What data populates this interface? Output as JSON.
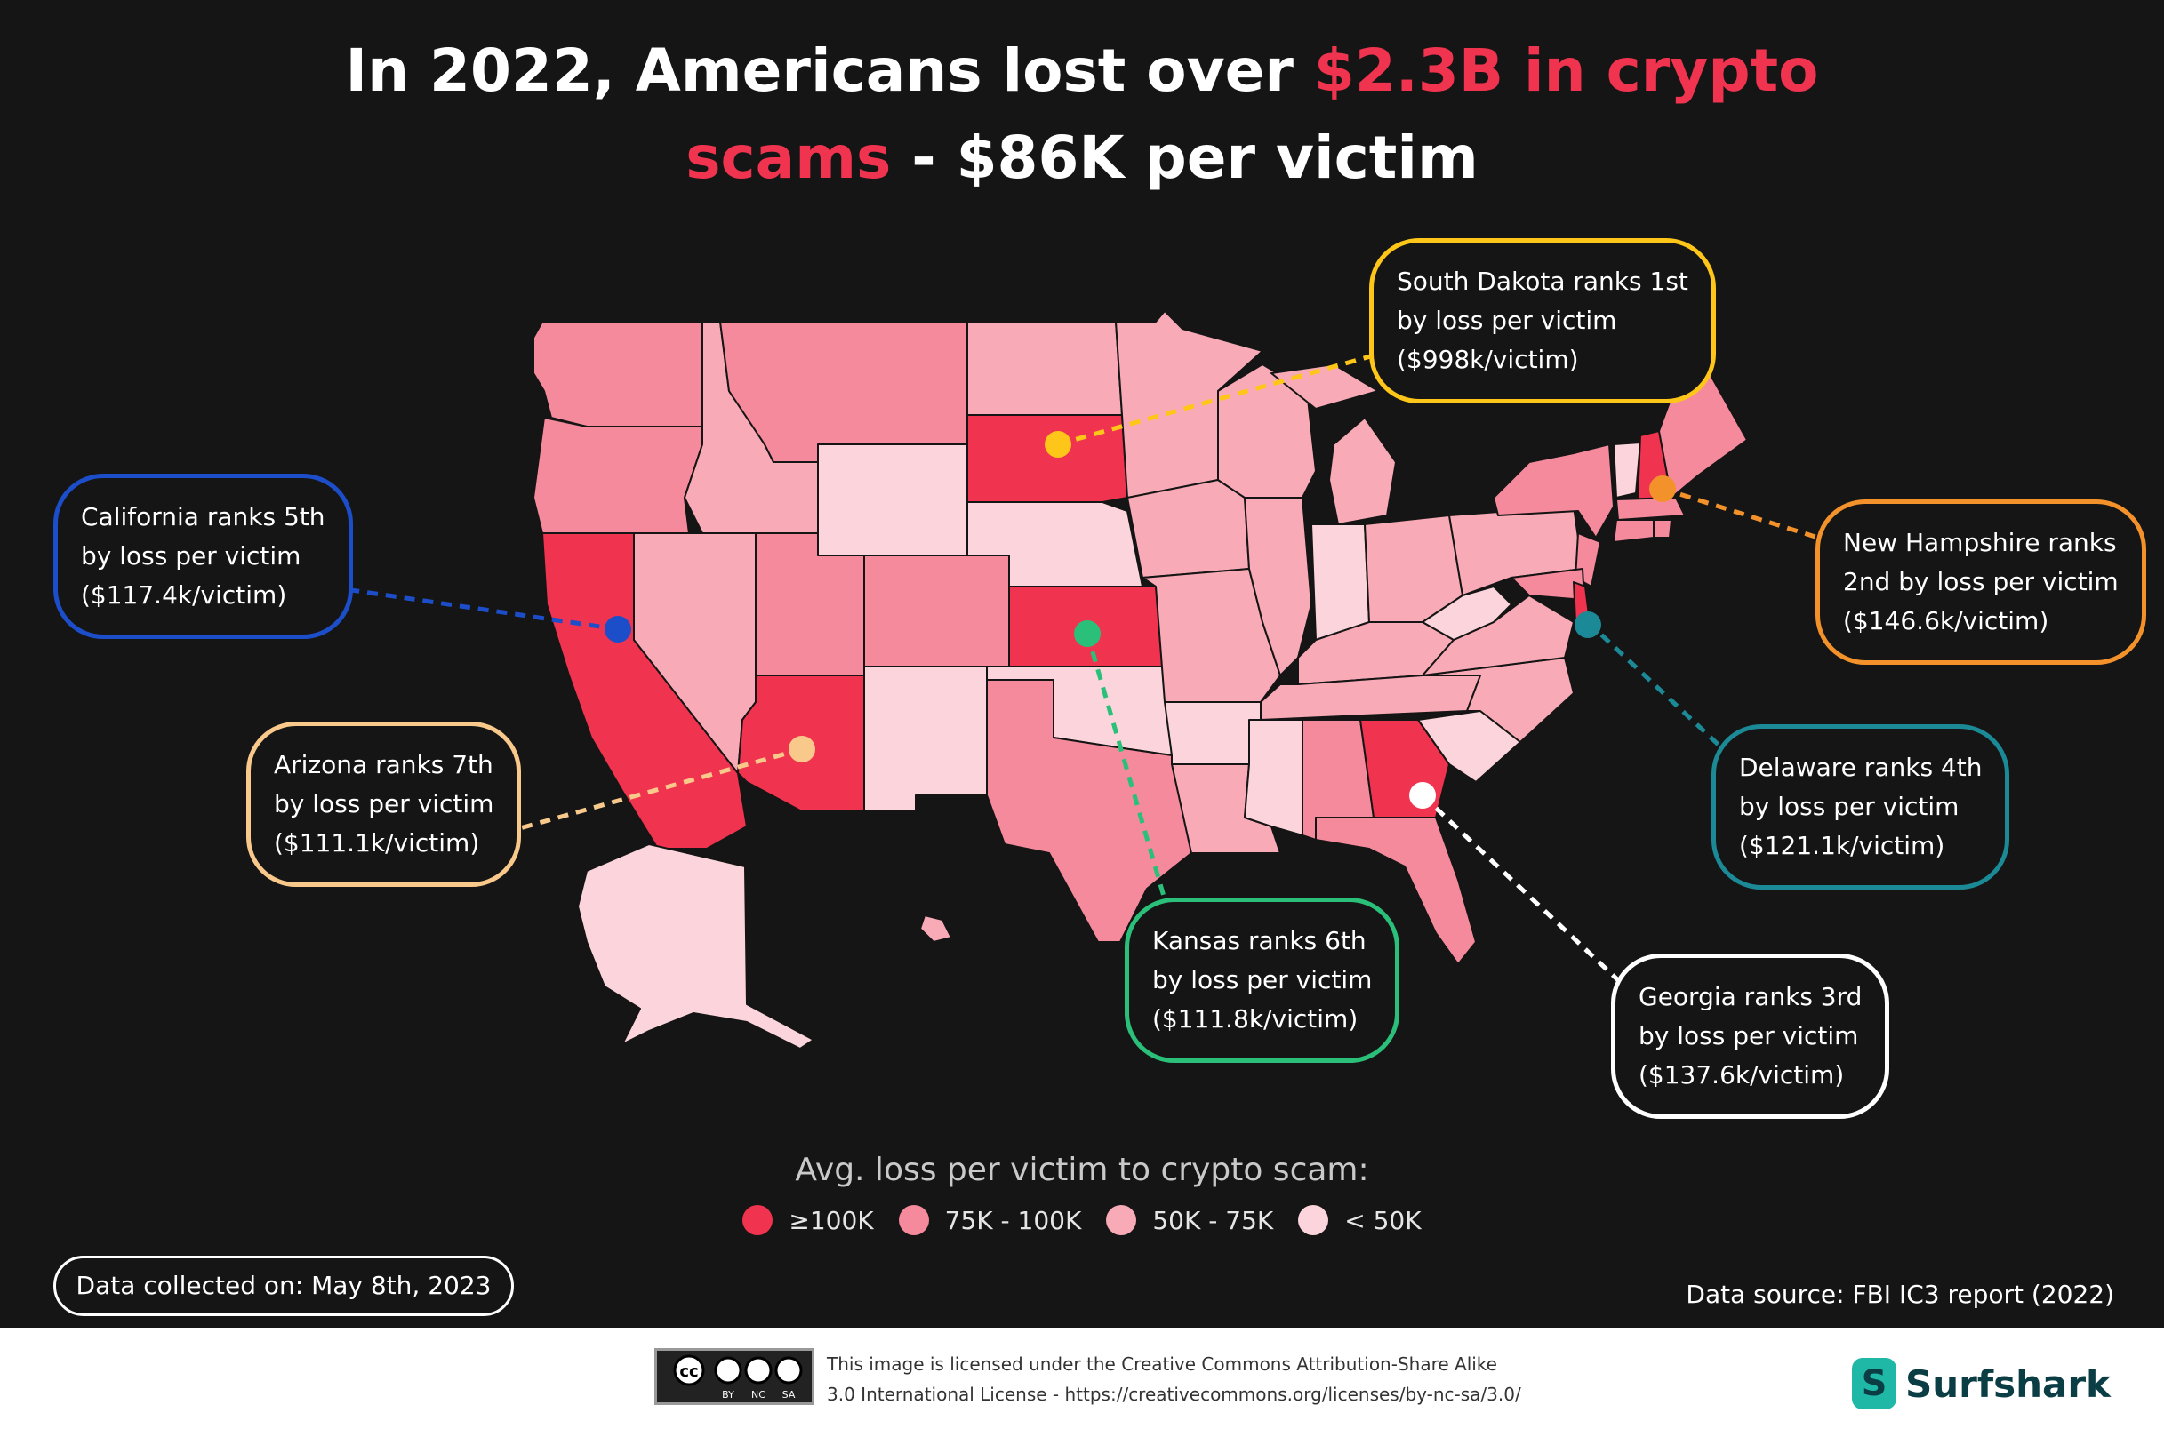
{
  "title": {
    "line1_prefix": "In 2022, Americans lost over ",
    "line1_accent": "$2.3B in crypto",
    "line2_accent": "scams",
    "line2_suffix": " - $86K per victim"
  },
  "colors": {
    "background": "#151515",
    "tier_ge100k": "#f0334f",
    "tier_75_100k": "#f58a9c",
    "tier_50_75k": "#f8aab6",
    "tier_lt50k": "#fbd5db",
    "accent": "#f0334f"
  },
  "callouts": [
    {
      "state": "South Dakota",
      "lines": [
        "South Dakota ranks 1st",
        "by loss per victim",
        "($998k/victim)"
      ],
      "color": "#ffc61a"
    },
    {
      "state": "New Hampshire",
      "lines": [
        "New Hampshire ranks",
        "2nd by loss per victim",
        "($146.6k/victim)"
      ],
      "color": "#f3922a"
    },
    {
      "state": "California",
      "lines": [
        "California ranks 5th",
        "by loss per victim",
        "($117.4k/victim)"
      ],
      "color": "#1d4ec9"
    },
    {
      "state": "Arizona",
      "lines": [
        "Arizona ranks 7th",
        "by loss per victim",
        "($111.1k/victim)"
      ],
      "color": "#f9c98b"
    },
    {
      "state": "Delaware",
      "lines": [
        "Delaware ranks 4th",
        "by loss per victim",
        "($121.1k/victim)"
      ],
      "color": "#1b8a96"
    },
    {
      "state": "Kansas",
      "lines": [
        "Kansas ranks 6th",
        "by loss per victim",
        "($111.8k/victim)"
      ],
      "color": "#2bc07a"
    },
    {
      "state": "Georgia",
      "lines": [
        "Georgia ranks 3rd",
        "by loss per victim",
        "($137.6k/victim)"
      ],
      "color": "#ffffff"
    }
  ],
  "legend": {
    "title": "Avg. loss per victim to crypto scam:",
    "items": [
      {
        "label": "≥100K",
        "color": "#f0334f"
      },
      {
        "label": "75K - 100K",
        "color": "#f58a9c"
      },
      {
        "label": "50K - 75K",
        "color": "#f8aab6"
      },
      {
        "label": "< 50K",
        "color": "#fbd5db"
      }
    ]
  },
  "footer": {
    "date_label": "Data collected on: May 8th, 2023",
    "source_label": "Data source: FBI IC3 report (2022)",
    "license_line1": "This image is licensed under the Creative Commons Attribution-Share Alike",
    "license_line2": "3.0 International License - https://creativecommons.org/licenses/by-nc-sa/3.0/",
    "cc_icons": [
      "BY",
      "NC",
      "SA"
    ],
    "brand": "Surfshark"
  }
}
